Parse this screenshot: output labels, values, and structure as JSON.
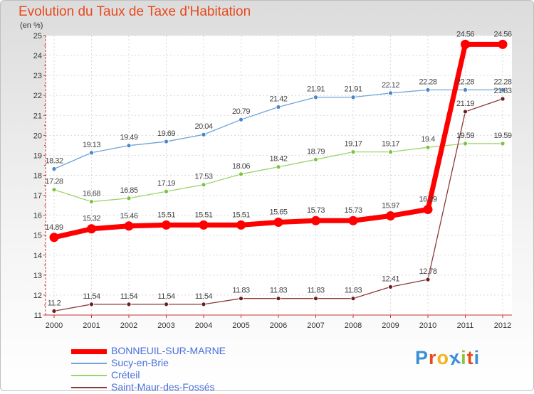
{
  "title": "Evolution du Taux de Taxe d'Habitation",
  "unit": "(en %)",
  "logo": {
    "text": "Proxiti",
    "letters": [
      "P",
      "r",
      "o",
      "x",
      "i",
      "t",
      "i"
    ],
    "colors": [
      "#3a8fd6",
      "#e8491d",
      "#f2b31c",
      "#3a8fd6",
      "#8cc63f",
      "#e8491d",
      "#3a8fd6"
    ]
  },
  "chart_data": {
    "type": "line",
    "x": [
      "2000",
      "2001",
      "2002",
      "2003",
      "2004",
      "2005",
      "2006",
      "2007",
      "2008",
      "2009",
      "2010",
      "2011",
      "2012"
    ],
    "ylim": [
      11,
      25
    ],
    "yticks": [
      "11",
      "12",
      "13",
      "14",
      "15",
      "16",
      "17",
      "18",
      "19",
      "20",
      "21",
      "22",
      "23",
      "24",
      "25"
    ],
    "grid": true,
    "legend": "bottom-left",
    "series": [
      {
        "name": "BONNEUIL-SUR-MARNE",
        "color": "#ff0000",
        "marker": "#ff0000",
        "values": [
          14.89,
          15.32,
          15.46,
          15.51,
          15.51,
          15.51,
          15.65,
          15.73,
          15.73,
          15.97,
          16.29,
          24.56,
          24.56
        ],
        "labels": [
          "14.89",
          "15.32",
          "15.46",
          "15.51",
          "15.51",
          "15.51",
          "15.65",
          "15.73",
          "15.73",
          "15.97",
          "16.29",
          "24.56",
          "24.56"
        ]
      },
      {
        "name": "Sucy-en-Brie",
        "color": "#6fa3d8",
        "marker": "#4a86c8",
        "values": [
          18.32,
          19.13,
          19.49,
          19.69,
          20.04,
          20.79,
          21.42,
          21.91,
          21.91,
          22.12,
          22.28,
          22.28,
          22.28
        ],
        "labels": [
          "18.32",
          "19.13",
          "19.49",
          "19.69",
          "20.04",
          "20.79",
          "21.42",
          "21.91",
          "21.91",
          "22.12",
          "22.28",
          "22.28",
          "22.28"
        ]
      },
      {
        "name": "Créteil",
        "color": "#9bd46a",
        "marker": "#7dc241",
        "values": [
          17.28,
          16.68,
          16.85,
          17.19,
          17.53,
          18.06,
          18.42,
          18.79,
          19.17,
          19.17,
          19.4,
          19.59,
          19.59
        ],
        "labels": [
          "17.28",
          "16.68",
          "16.85",
          "17.19",
          "17.53",
          "18.06",
          "18.42",
          "18.79",
          "19.17",
          "19.17",
          "19.4",
          "19.59",
          "19.59"
        ]
      },
      {
        "name": "Saint-Maur-des-Fossés",
        "color": "#8b3a3a",
        "marker": "#6b1f1f",
        "values": [
          11.2,
          11.54,
          11.54,
          11.54,
          11.54,
          11.83,
          11.83,
          11.83,
          11.83,
          12.41,
          12.78,
          21.19,
          21.83
        ],
        "labels": [
          "11.2",
          "11.54",
          "11.54",
          "11.54",
          "11.54",
          "11.83",
          "11.83",
          "11.83",
          "11.83",
          "12.41",
          "12.78",
          "21.19",
          "21.83"
        ]
      }
    ]
  }
}
